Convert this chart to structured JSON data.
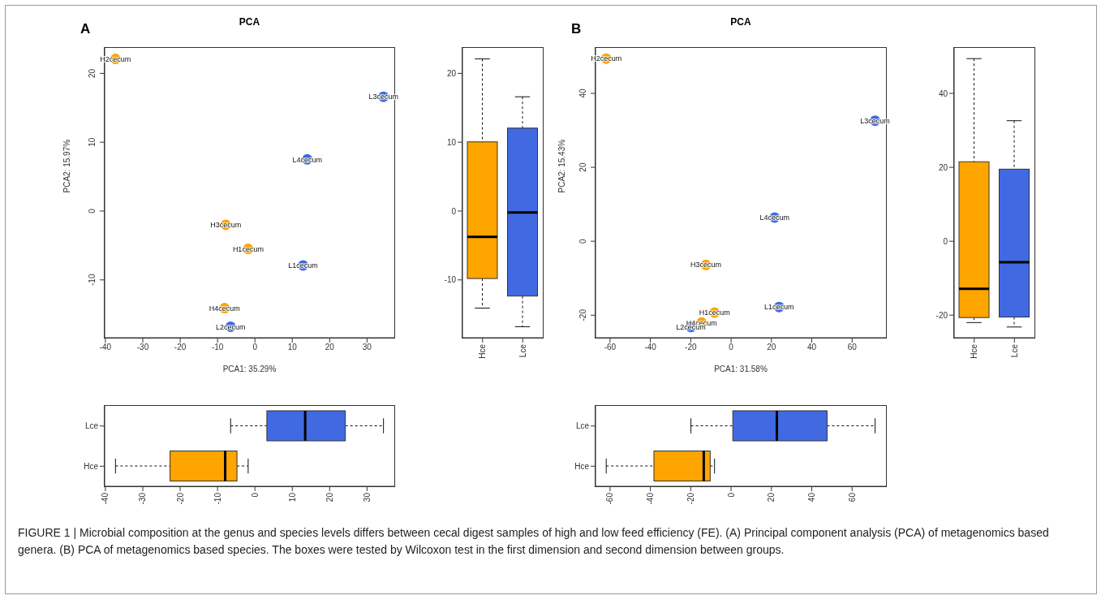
{
  "chart_data": [
    {
      "type": "scatter",
      "title": "PCA",
      "xlabel": "PCA1: 35.29%",
      "ylabel": "PCA2: 15.97%",
      "annotations": [
        "A",
        "FIGURE 1 | Microbial composition at the genus and species levels differs between cecal digest samples of high and low feed efficiency (FE). (A) Principal component analysis (PCA) of metagenomics based genera. (B) PCA of metagenomics based species. The boxes were tested by Wilcoxon test in the first dimension and second dimension between groups."
      ],
      "marker": "circle",
      "xlim": [
        -40.2,
        37.3
      ],
      "xticks": [
        -40,
        -30,
        -20,
        -10,
        0,
        10,
        20,
        30
      ],
      "ylim": [
        -18.4,
        23.7
      ],
      "yticks": [
        -10,
        0,
        10,
        20
      ],
      "series": [
        {
          "color": "#ffa500",
          "x": [
            -1.8,
            -37.3,
            -7.8,
            -8.1
          ],
          "values": [
            -5.5,
            22.1,
            -2.0,
            -14.1
          ],
          "value_labels": [
            "H1cecum",
            "H2cecum",
            "H3cecum",
            "H4cecum"
          ]
        },
        {
          "color": "#4169e1",
          "x": [
            12.9,
            -6.5,
            34.4,
            14.0
          ],
          "values": [
            -7.9,
            -16.8,
            16.6,
            7.5
          ],
          "value_labels": [
            "L1cecum",
            "L2cecum",
            "L3cecum",
            "L4cecum"
          ]
        }
      ]
    },
    {
      "type": "box",
      "categories": [
        "Hce",
        "Lce"
      ],
      "colors": [
        "#ffa500",
        "#4169e1"
      ],
      "boxes": [
        {
          "low": -14.1,
          "q1": -9.8,
          "median": -3.75,
          "q3": 10.05,
          "high": 22.1
        },
        {
          "low": -16.8,
          "q1": -12.35,
          "median": -0.2,
          "q3": 12.05,
          "high": 16.6
        }
      ],
      "ylim": [
        -18.4,
        23.7
      ],
      "yticks": [
        -10,
        0,
        10,
        20
      ]
    },
    {
      "type": "box",
      "orientation": "horizontal",
      "categories": [
        "Lce",
        "Hce"
      ],
      "colors": [
        "#4169e1",
        "#ffa500"
      ],
      "boxes": [
        {
          "low": -6.5,
          "q1": 3.2,
          "median": 13.45,
          "q3": 24.2,
          "high": 34.4
        },
        {
          "low": -37.3,
          "q1": -22.7,
          "median": -7.95,
          "q3": -4.8,
          "high": -1.8
        }
      ],
      "xlim": [
        -40.2,
        37.3
      ],
      "xticks": [
        -40,
        -30,
        -20,
        -10,
        0,
        10,
        20,
        30
      ]
    },
    {
      "type": "scatter",
      "title": "PCA",
      "xlabel": "PCA1: 31.58%",
      "ylabel": "PCA2: 15.43%",
      "annotations": [
        "B"
      ],
      "marker": "circle",
      "xlim": [
        -67.2,
        76.8
      ],
      "xticks": [
        -60,
        -40,
        -20,
        0,
        20,
        40,
        60
      ],
      "ylim": [
        -26.1,
        52.3
      ],
      "yticks": [
        -20,
        0,
        20,
        40
      ],
      "series": [
        {
          "color": "#ffa500",
          "x": [
            -8.2,
            -61.9,
            -12.5,
            -14.6
          ],
          "values": [
            -19.3,
            49.4,
            -6.4,
            -22.0
          ],
          "value_labels": [
            "H1cecum",
            "H2cecum",
            "H3cecum",
            "H4cecum"
          ]
        },
        {
          "color": "#4169e1",
          "x": [
            23.8,
            -19.9,
            71.4,
            21.6
          ],
          "values": [
            -17.8,
            -23.2,
            32.6,
            6.4
          ],
          "value_labels": [
            "L1cecum",
            "L2cecum",
            "L3cecum",
            "L4cecum"
          ]
        }
      ]
    },
    {
      "type": "box",
      "categories": [
        "Hce",
        "Lce"
      ],
      "colors": [
        "#ffa500",
        "#4169e1"
      ],
      "boxes": [
        {
          "low": -22.0,
          "q1": -20.65,
          "median": -12.85,
          "q3": 21.5,
          "high": 49.4
        },
        {
          "low": -23.2,
          "q1": -20.5,
          "median": -5.7,
          "q3": 19.5,
          "high": 32.6
        }
      ],
      "ylim": [
        -26.1,
        52.3
      ],
      "yticks": [
        -20,
        0,
        20,
        40
      ]
    },
    {
      "type": "box",
      "orientation": "horizontal",
      "categories": [
        "Lce",
        "Hce"
      ],
      "colors": [
        "#4169e1",
        "#ffa500"
      ],
      "boxes": [
        {
          "low": -19.9,
          "q1": 0.85,
          "median": 22.7,
          "q3": 47.6,
          "high": 71.4
        },
        {
          "low": -61.9,
          "q1": -38.25,
          "median": -13.55,
          "q3": -10.35,
          "high": -8.2
        }
      ],
      "xlim": [
        -67.2,
        76.8
      ],
      "xticks": [
        -60,
        -40,
        -20,
        0,
        20,
        40,
        60
      ]
    }
  ]
}
